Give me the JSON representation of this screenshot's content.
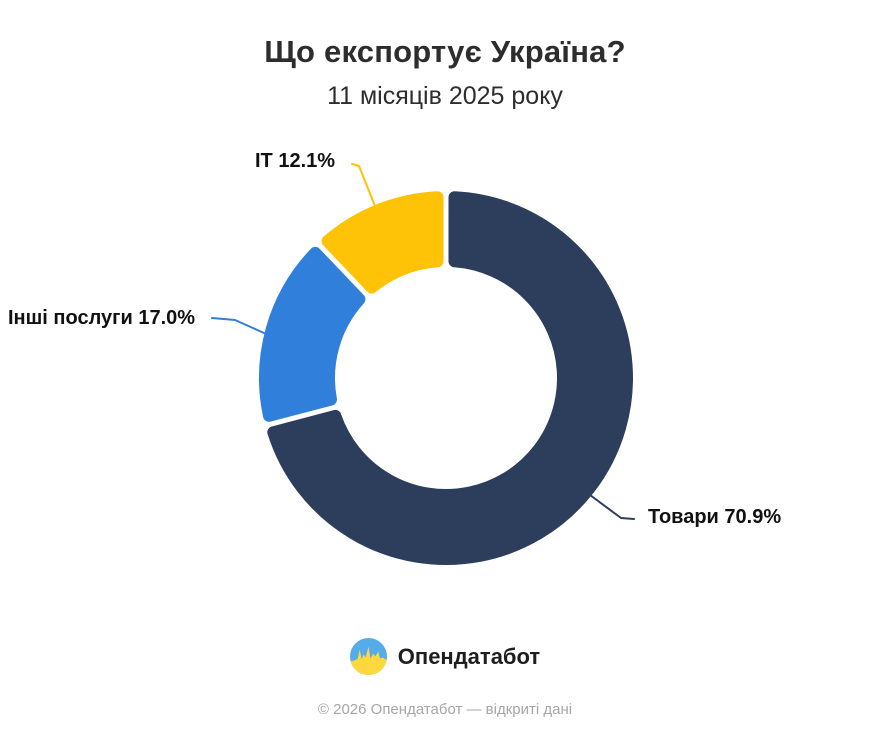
{
  "header": {
    "title": "Що експортує Україна?",
    "subtitle": "11 місяців 2025 року"
  },
  "chart_data": {
    "type": "pie",
    "variant": "donut",
    "title": "Що експортує Україна?",
    "subtitle": "11 місяців 2025 року",
    "unit": "%",
    "start_angle_deg": 0,
    "direction": "clockwise",
    "legend": "callout-labels",
    "slices": [
      {
        "label": "Товари",
        "value": 70.9,
        "color": "#2d3e5c",
        "label_text": "Товари 70.9%"
      },
      {
        "label": "Інші послуги",
        "value": 17.0,
        "color": "#3080db",
        "label_text": "Інші послуги 17.0%"
      },
      {
        "label": "IT",
        "value": 12.1,
        "color": "#fec307",
        "label_text": "IT 12.1%"
      }
    ]
  },
  "footer": {
    "brand": "Опендатабот",
    "copyright": "© 2026 Опендатабот — відкриті дані",
    "logo_colors": {
      "top": "#56ace8",
      "bottom": "#ffd83d"
    }
  }
}
